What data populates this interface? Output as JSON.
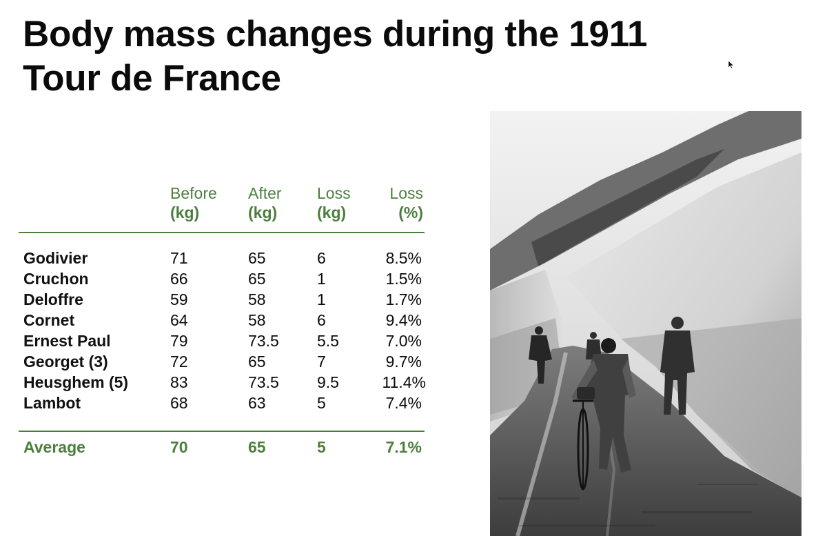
{
  "title_line1": "Body mass changes during the 1911",
  "title_line2": "Tour de France",
  "columns": [
    {
      "line1": "Before",
      "line2": "(kg)"
    },
    {
      "line1": "After",
      "line2": "(kg)"
    },
    {
      "line1": "Loss",
      "line2": "(kg)"
    },
    {
      "line1": "Loss",
      "line2": "(%)"
    }
  ],
  "rows": [
    {
      "name": "Godivier",
      "before": "71",
      "after": "65",
      "loss_kg": "6",
      "loss_pct": "8.5%"
    },
    {
      "name": "Cruchon",
      "before": "66",
      "after": "65",
      "loss_kg": "1",
      "loss_pct": "1.5%"
    },
    {
      "name": "Deloffre",
      "before": "59",
      "after": "58",
      "loss_kg": "1",
      "loss_pct": "1.7%"
    },
    {
      "name": "Cornet",
      "before": "64",
      "after": "58",
      "loss_kg": "6",
      "loss_pct": "9.4%"
    },
    {
      "name": "Ernest Paul",
      "before": "79",
      "after": "73.5",
      "loss_kg": "5.5",
      "loss_pct": "7.0%"
    },
    {
      "name": "Georget (3)",
      "before": "72",
      "after": "65",
      "loss_kg": "7",
      "loss_pct": "9.7%"
    },
    {
      "name": "Heusghem (5)",
      "before": "83",
      "after": "73.5",
      "loss_kg": "9.5",
      "loss_pct": "11.4%"
    },
    {
      "name": "Lambot",
      "before": "68",
      "after": "63",
      "loss_kg": "5",
      "loss_pct": "7.4%"
    }
  ],
  "average": {
    "label": "Average",
    "before": "70",
    "after": "65",
    "loss_kg": "5",
    "loss_pct": "7.1%"
  },
  "colors": {
    "accent_green": "#4c7f3d",
    "text": "#0b0b0b"
  }
}
